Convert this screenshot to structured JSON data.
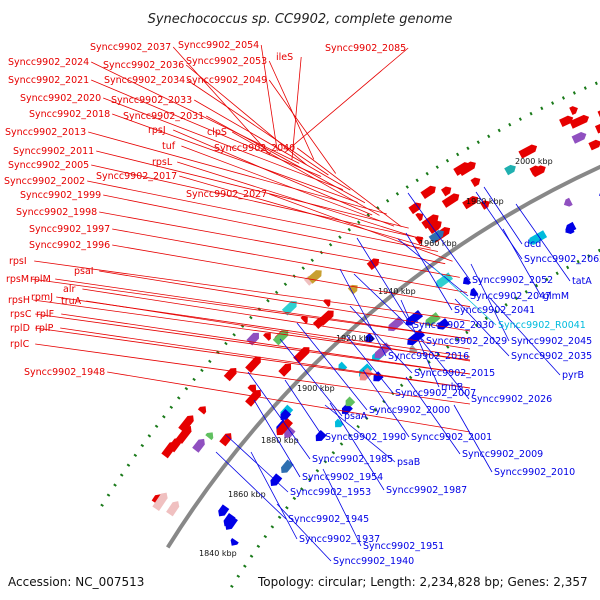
{
  "title": "Synechococcus sp. CC9902, complete genome",
  "accession": "Accession: NC_007513",
  "summary": "Topology: circular; Length: 2,234,828 bp; Genes: 2,357",
  "colors": {
    "forward": "#e60000",
    "reverse": "#0000e6",
    "rna": "#00bbdd",
    "backbone": "#888888",
    "tick_dots": "#1a7a1a"
  },
  "kbp_ticks": [
    "2000 kbp",
    "1980 kbp",
    "1960 kbp",
    "1940 kbp",
    "1920 kbp",
    "1900 kbp",
    "1880 kbp",
    "1860 kbp",
    "1840 kbp"
  ],
  "labels_left": [
    "Syncc9902_2037",
    "Syncc9902_2054",
    "Syncc9902_2085",
    "ileS",
    "Syncc9902_2024",
    "Syncc9902_2036",
    "Syncc9902_2053",
    "Syncc9902_2021",
    "Syncc9902_2034",
    "Syncc9902_2049",
    "Syncc9902_2020",
    "Syncc9902_2033",
    "Syncc9902_2018",
    "Syncc9902_2031",
    "rpsJ",
    "clpS",
    "Syncc9902_2013",
    "tuf",
    "Syncc9902_2040",
    "Syncc9902_2011",
    "rpsL",
    "Syncc9902_2005",
    "Syncc9902_2017",
    "Syncc9902_2002",
    "Syncc9902_1999",
    "Syncc9902_2027",
    "Syncc9902_1998",
    "Syncc9902_1997",
    "Syncc9902_1996",
    "rpsI",
    "psaI",
    "rpsM",
    "rplM",
    "alr",
    "rpmJ",
    "rpsH",
    "truA",
    "rpsC",
    "rplF",
    "rplD",
    "rplP",
    "rplC",
    "Syncc9902_1948"
  ],
  "labels_right": [
    "dcd",
    "Syncc9902_2062",
    "tatA",
    "Syncc9902_2052",
    "Syncc9902_2047",
    "glmM",
    "Syncc9902_2041",
    "Syncc9902_2030",
    "Syncc9902_R0041",
    "Syncc9902_2029",
    "Syncc9902_2045",
    "Syncc9902_2016",
    "Syncc9902_2035",
    "Syncc9902_2015",
    "pyrB",
    "rnhB",
    "Syncc9902_2007",
    "Syncc9902_2026",
    "psaA",
    "Syncc9902_2000",
    "Syncc9902_1990",
    "Syncc9902_2001",
    "Syncc9902_2009",
    "Syncc9902_1985",
    "psaB",
    "Syncc9902_2010",
    "Syncc9902_1954",
    "Syncc9902_1987",
    "Syncc9902_1953",
    "Syncc9902_1945",
    "Syncc9902_1951",
    "Syncc9902_1937",
    "Syncc9902_1940"
  ]
}
